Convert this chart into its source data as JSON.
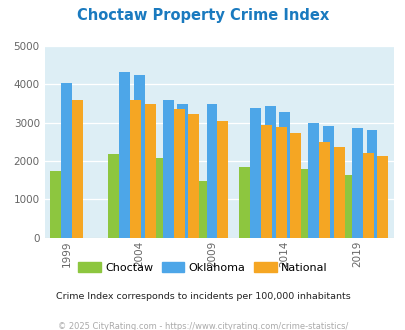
{
  "title": "Choctaw Property Crime Index",
  "title_color": "#1a7abf",
  "years": [
    1999,
    2003,
    2004,
    2006,
    2007,
    2009,
    2012,
    2013,
    2014,
    2016,
    2017,
    2019,
    2020
  ],
  "choctaw": [
    1750,
    2175,
    2175,
    2075,
    1600,
    1480,
    1840,
    1920,
    2030,
    1800,
    1340,
    1640,
    1420
  ],
  "oklahoma": [
    4050,
    4320,
    4240,
    3590,
    3490,
    3490,
    3380,
    3430,
    3280,
    3000,
    2920,
    2860,
    2820
  ],
  "national": [
    3600,
    3590,
    3480,
    3370,
    3240,
    3040,
    2940,
    2890,
    2740,
    2500,
    2370,
    2200,
    2120
  ],
  "choctaw_color": "#8dc63f",
  "oklahoma_color": "#4da6e8",
  "national_color": "#f5a623",
  "bg_color": "#ddeef5",
  "ylim": [
    0,
    5000
  ],
  "yticks": [
    0,
    1000,
    2000,
    3000,
    4000,
    5000
  ],
  "xtick_labels": [
    "1999",
    "2004",
    "2009",
    "2014",
    "2019"
  ],
  "xtick_positions": [
    1999,
    2004,
    2009,
    2014,
    2019
  ],
  "subtitle": "Crime Index corresponds to incidents per 100,000 inhabitants",
  "subtitle_color": "#222222",
  "footer": "© 2025 CityRating.com - https://www.cityrating.com/crime-statistics/",
  "footer_color": "#aaaaaa",
  "legend_labels": [
    "Choctaw",
    "Oklahoma",
    "National"
  ],
  "bar_width": 0.75,
  "group_width": 3.0
}
